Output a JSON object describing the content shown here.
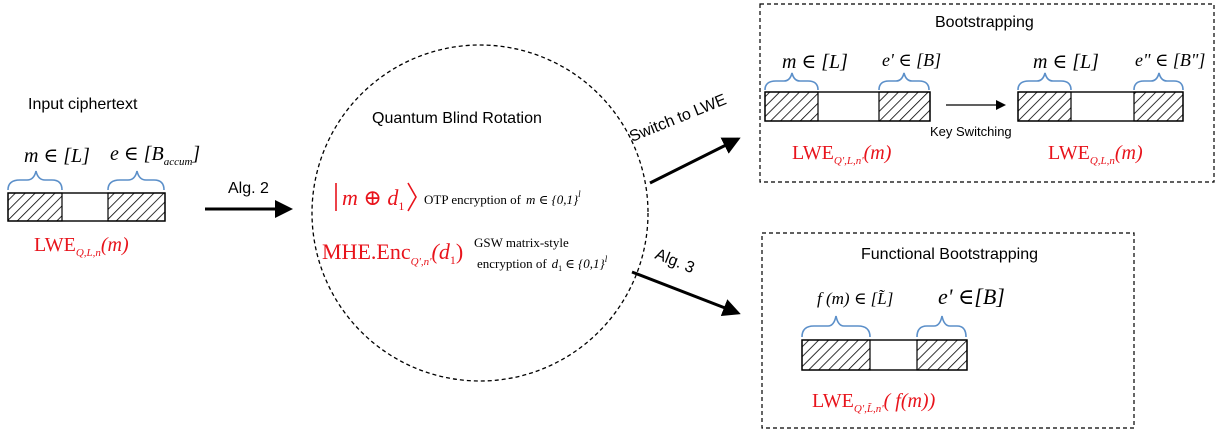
{
  "input": {
    "title": "Input ciphertext",
    "msg_label": "m ∈ [L]",
    "err_label_main": "e ∈ [B",
    "err_label_sub": "accum",
    "err_label_close": "]",
    "lwe_main": "LWE",
    "lwe_sub": "Q,L,n",
    "lwe_arg": "(m)"
  },
  "arrows": {
    "alg2": "Alg. 2",
    "switch": "Switch to LWE",
    "alg3": "Alg. 3",
    "key_switching": "Key Switching"
  },
  "circle": {
    "title": "Quantum Blind Rotation",
    "ket_text": "m ⊕ d",
    "ket_sub": "1",
    "otp_text": "OTP encryption of",
    "otp_math": "m ∈ {0,1}",
    "otp_sup": "l",
    "mhe_main": "MHE.Enc",
    "mhe_sub": "Q',n'",
    "mhe_arg": "(d",
    "mhe_arg_sub": "1",
    "mhe_close": ")",
    "gsw_line1": "GSW matrix-style",
    "gsw_line2": "encryption of",
    "gsw_math": "d",
    "gsw_math_sub": "1",
    "gsw_set": "∈ {0,1}",
    "gsw_sup": "l"
  },
  "bootstrapping": {
    "title": "Bootstrapping",
    "left_msg": "m ∈ [L]",
    "left_err": "e' ∈ [B]",
    "right_msg": "m ∈ [L]",
    "right_err": "e\" ∈ [B\"]",
    "left_lwe_main": "LWE",
    "left_lwe_sub": "Q',L,n'",
    "left_lwe_arg": "(m)",
    "right_lwe_main": "LWE",
    "right_lwe_sub": "Q,L,n",
    "right_lwe_arg": "(m)"
  },
  "functional": {
    "title": "Functional Bootstrapping",
    "msg": "f (m) ∈ [L̃]",
    "err": "e' ∈[B]",
    "lwe_main": "LWE",
    "lwe_sub": "Q',L̃,n'",
    "lwe_arg": "( f(m))"
  },
  "colors": {
    "accent_red": "#e8141c",
    "brace_blue": "#5b8fc9",
    "ink": "#000000"
  }
}
